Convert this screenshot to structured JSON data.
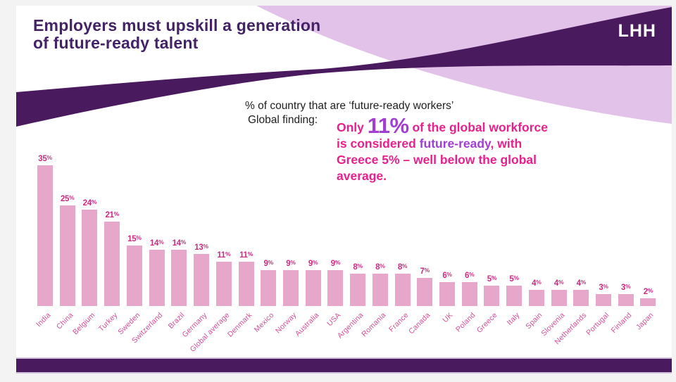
{
  "header": {
    "title": "Employers must upskill a generation\nof future-ready talent",
    "logo": "LHH"
  },
  "finding": {
    "label": "Global finding:",
    "lines": [
      [
        {
          "text": "Only ",
          "style": "pink"
        },
        {
          "text": "11%",
          "style": "purple-big"
        },
        {
          "text": " of the global workforce",
          "style": "pink"
        }
      ],
      [
        {
          "text": "is considered ",
          "style": "pink"
        },
        {
          "text": "future-ready",
          "style": "purple"
        },
        {
          "text": ", with",
          "style": "pink"
        }
      ],
      [
        {
          "text": "Greece 5% – well below the global",
          "style": "pink"
        }
      ],
      [
        {
          "text": "average.",
          "style": "pink"
        }
      ]
    ]
  },
  "colors": {
    "background": "#f3f3f4",
    "slide": "#ffffff",
    "brand_dark_purple": "#4a1a5e",
    "brand_lavender": "#e3c2ea",
    "title_text": "#432365",
    "body_text": "#202020",
    "finding_pink": "#e8208d",
    "finding_purple": "#a03fd2",
    "bar_fill": "#e7a7cb",
    "bar_value_label": "#ca2b80",
    "axis_label": "#d14f97"
  },
  "chart_data": {
    "type": "bar",
    "title": "% of country that are ‘future-ready workers’",
    "categories": [
      "India",
      "China",
      "Belgium",
      "Turkey",
      "Sweden",
      "Switzerland",
      "Brazil",
      "Germany",
      "Global average",
      "Denmark",
      "Mexico",
      "Norway",
      "Australia",
      "USA",
      "Argentina",
      "Romania",
      "France",
      "Canada",
      "UK",
      "Poland",
      "Greece",
      "Italy",
      "Spain",
      "Slovenia",
      "Netherlands",
      "Portugal",
      "Finland",
      "Japan"
    ],
    "values": [
      35,
      25,
      24,
      21,
      15,
      14,
      14,
      13,
      11,
      11,
      9,
      9,
      9,
      9,
      8,
      8,
      8,
      7,
      6,
      6,
      5,
      5,
      4,
      4,
      4,
      3,
      3,
      2
    ],
    "value_suffix": "%",
    "xlabel": "",
    "ylabel": "",
    "ylim": [
      0,
      35
    ],
    "grid": false,
    "legend": "none",
    "value_labels_shown": true,
    "axis_labels_rotated_degrees": 45
  }
}
